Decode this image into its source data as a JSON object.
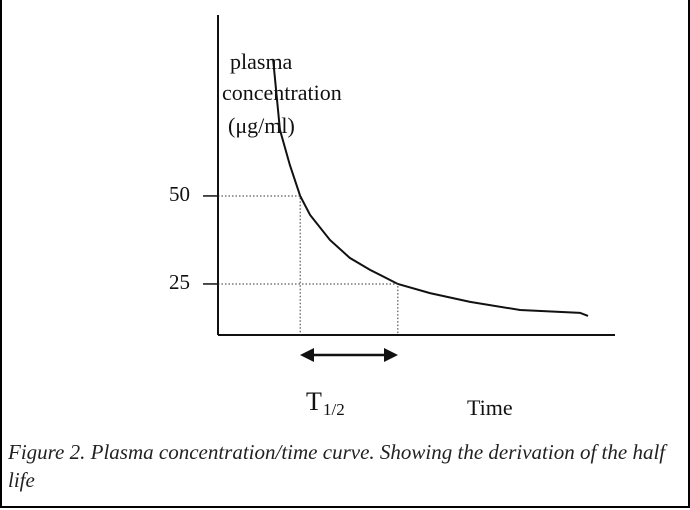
{
  "chart_data": {
    "type": "line",
    "y_label": [
      "plasma",
      "concentration",
      "(μg/ml)"
    ],
    "x_label": "Time",
    "annotation": {
      "text": "T",
      "subscript": "1/2"
    },
    "caption": "Figure 2. Plasma concentration/time curve. Showing the derivation of the half life",
    "x": [
      13.9,
      15.6,
      18.1,
      20.7,
      23.2,
      28.2,
      33.2,
      38.3,
      45.3,
      53.4,
      63.5,
      76.1,
      91.2,
      93.2
    ],
    "values": [
      88.6,
      68.8,
      58.8,
      50,
      44.6,
      37.5,
      32.4,
      29.0,
      25,
      22.4,
      19.9,
      17.6,
      16.8,
      15.9
    ],
    "color": "#111111",
    "xlim": [
      0,
      100
    ],
    "ylim": [
      10.5,
      101.4
    ],
    "yticks": [
      50,
      25
    ]
  }
}
